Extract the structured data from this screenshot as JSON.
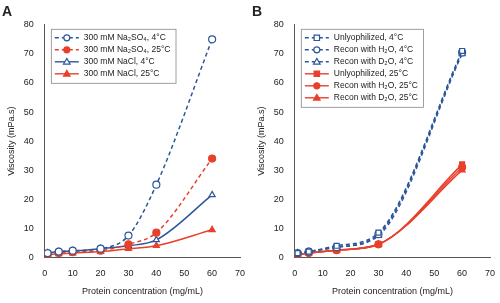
{
  "chart_data": [
    {
      "type": "line",
      "title": "A",
      "x_label": "Protein concentration (mg/mL)",
      "y_label": "Viscosity (mPa.s)",
      "x": [
        1,
        5,
        10,
        20,
        30,
        40,
        60
      ],
      "xlim": [
        0,
        70
      ],
      "xticks": [
        0,
        10,
        20,
        30,
        40,
        50,
        60,
        70
      ],
      "ylim": [
        0,
        80
      ],
      "yticks": [
        0,
        10,
        20,
        30,
        40,
        50,
        60,
        70,
        80
      ],
      "grid": false,
      "legend": "upper left",
      "series": [
        {
          "name": "300 mM Na₂SO₄, 4°C",
          "color": "#2b579a",
          "marker": "circle-open",
          "line_style": "dashed",
          "values": [
            1.5,
            2,
            2.3,
            3,
            7.5,
            25,
            75
          ]
        },
        {
          "name": "300 mM Na₂SO₄, 25°C",
          "color": "#e8402a",
          "marker": "circle",
          "line_style": "dashed",
          "values": [
            1,
            1.5,
            1.8,
            2.3,
            4.5,
            8.5,
            34
          ]
        },
        {
          "name": "300 mM NaCl, 4°C",
          "color": "#2b579a",
          "marker": "triangle-open",
          "line_style": "solid",
          "values": [
            1.5,
            2,
            2.2,
            3,
            4,
            6,
            21.5
          ]
        },
        {
          "name": "300 mM NaCl, 25°C",
          "color": "#e8402a",
          "marker": "triangle",
          "line_style": "solid",
          "values": [
            1,
            1.2,
            1.5,
            2,
            3,
            4,
            9.5
          ]
        }
      ]
    },
    {
      "type": "line",
      "title": "B",
      "x_label": "Protein concentration (mg/mL)",
      "y_label": "Viscosity (mPa.s)",
      "x": [
        1,
        5,
        15,
        30,
        60
      ],
      "xlim": [
        0,
        70
      ],
      "xticks": [
        0,
        10,
        20,
        30,
        40,
        50,
        60,
        70
      ],
      "ylim": [
        0,
        80
      ],
      "yticks": [
        0,
        10,
        20,
        30,
        40,
        50,
        60,
        70,
        80
      ],
      "grid": false,
      "legend": "upper left",
      "series": [
        {
          "name": "Unlyophilized, 4°C",
          "color": "#2b579a",
          "marker": "rect-open",
          "line_style": "dashed",
          "values": [
            1.5,
            2,
            4,
            8.5,
            71
          ]
        },
        {
          "name": "Recon with H₂O, 4°C",
          "color": "#2b579a",
          "marker": "circle-open",
          "line_style": "dashed",
          "values": [
            1.5,
            2,
            3.5,
            8,
            70.5
          ]
        },
        {
          "name": "Recon with D₂O, 4°C",
          "color": "#2b579a",
          "marker": "triangle-open",
          "line_style": "dashed",
          "values": [
            1.5,
            2,
            3.5,
            7.5,
            70
          ]
        },
        {
          "name": "Unlyophilized, 25°C",
          "color": "#e8402a",
          "marker": "rect",
          "line_style": "solid",
          "values": [
            1,
            1.5,
            2.5,
            4.5,
            32
          ]
        },
        {
          "name": "Recon with H₂O, 25°C",
          "color": "#e8402a",
          "marker": "circle",
          "line_style": "solid",
          "values": [
            1,
            1.5,
            2.5,
            4.5,
            31
          ]
        },
        {
          "name": "Recon with D₂O, 25°C",
          "color": "#e8402a",
          "marker": "triangle",
          "line_style": "solid",
          "values": [
            1,
            1.5,
            2.5,
            4.5,
            30
          ]
        }
      ]
    }
  ]
}
